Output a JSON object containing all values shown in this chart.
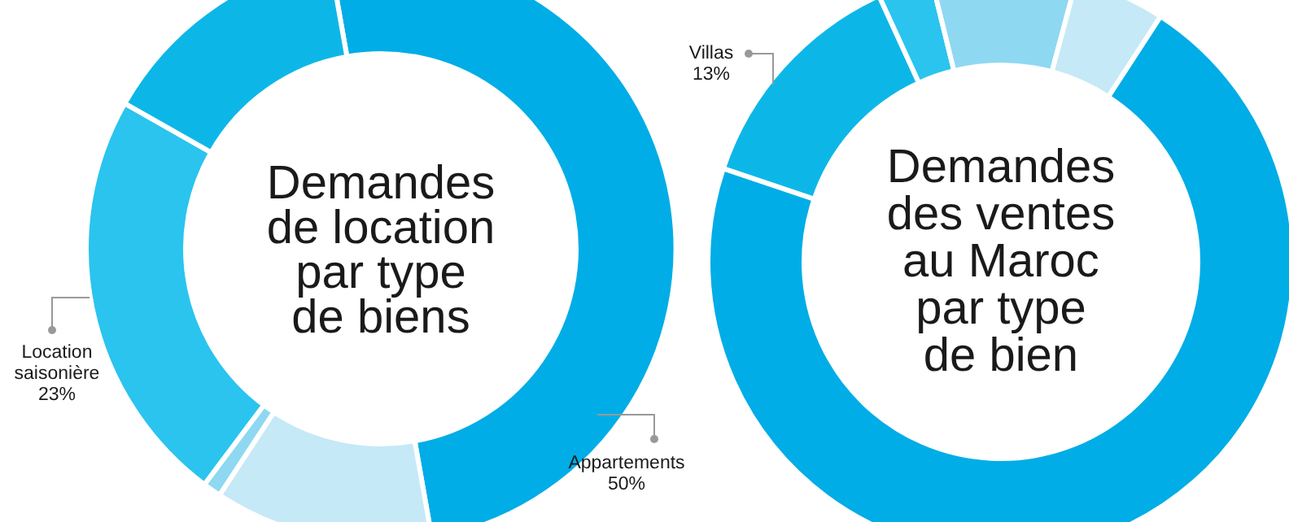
{
  "chart_data": [
    {
      "type": "donut",
      "title": "Demandes\nde location\npar type\nde biens",
      "categories": [
        "Appartements",
        null,
        null,
        "Location saisonière",
        null
      ],
      "values": [
        50,
        12,
        1,
        23,
        14
      ],
      "value_labels": [
        "50%",
        null,
        null,
        "23%",
        null
      ],
      "colors": [
        "#00ade6",
        "#c5e9f7",
        "#8fd8f2",
        "#2ac4ee",
        "#0cb7e8"
      ]
    },
    {
      "type": "donut",
      "title": "Demandes\ndes ventes\nau Maroc\npar type\nde bien",
      "categories": [
        null,
        "Villas",
        null,
        null,
        null
      ],
      "values": [
        71,
        13,
        3,
        8,
        5
      ],
      "value_labels": [
        null,
        "13%",
        null,
        null,
        null
      ],
      "colors": [
        "#00ade6",
        "#0cb7e8",
        "#2ac4ee",
        "#8fd8f2",
        "#c5e9f7"
      ]
    }
  ]
}
